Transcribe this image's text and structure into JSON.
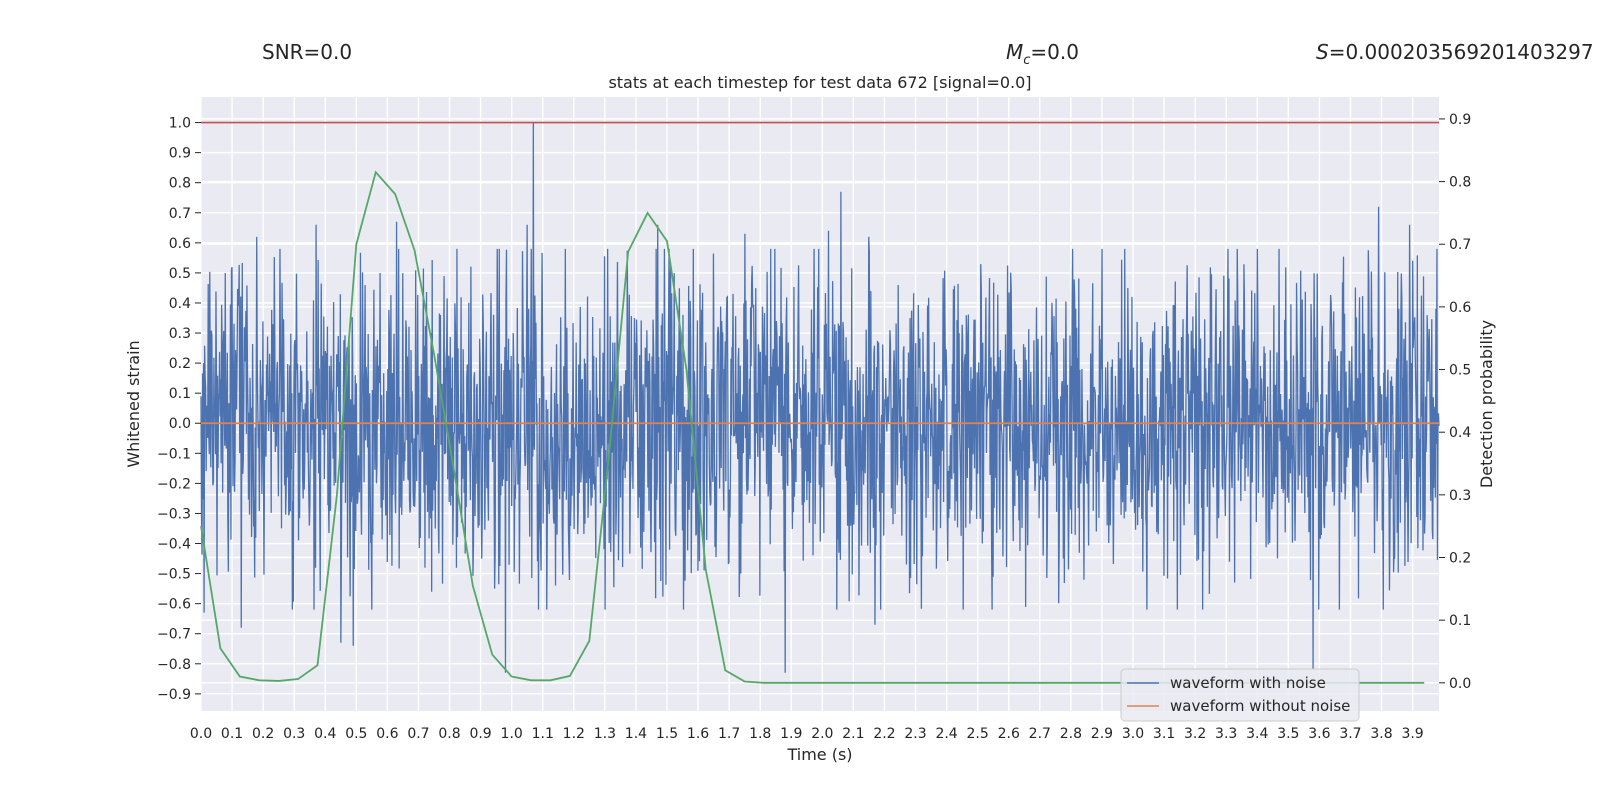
{
  "header": {
    "snr_label": "SNR=0.0",
    "mc_symbol": "M",
    "mc_subscript": "c",
    "mc_value": "=0.0",
    "s_symbol": "S",
    "s_value": "=0.000203569201403297"
  },
  "chart_data": {
    "type": "line",
    "title": "stats at each timestep for test data 672 [signal=0.0]",
    "xlabel": "Time (s)",
    "ylabel": "Whitened strain",
    "y2label": "Detection probability",
    "xlim": [
      0,
      3.985
    ],
    "ylim": [
      -0.957,
      1.085
    ],
    "y2lim": [
      -0.045,
      0.935
    ],
    "x_ticks": [
      "0.0",
      "0.1",
      "0.2",
      "0.3",
      "0.4",
      "0.5",
      "0.6",
      "0.7",
      "0.8",
      "0.9",
      "1.0",
      "1.1",
      "1.2",
      "1.3",
      "1.4",
      "1.5",
      "1.6",
      "1.7",
      "1.8",
      "1.9",
      "2.0",
      "2.1",
      "2.2",
      "2.3",
      "2.4",
      "2.5",
      "2.6",
      "2.7",
      "2.8",
      "2.9",
      "3.0",
      "3.1",
      "3.2",
      "3.3",
      "3.4",
      "3.5",
      "3.6",
      "3.7",
      "3.8",
      "3.9"
    ],
    "y_ticks": [
      "1.0",
      "0.9",
      "0.8",
      "0.7",
      "0.6",
      "0.5",
      "0.4",
      "0.3",
      "0.2",
      "0.1",
      "0.0",
      "−0.1",
      "−0.2",
      "−0.3",
      "−0.4",
      "−0.5",
      "−0.6",
      "−0.7",
      "−0.8",
      "−0.9"
    ],
    "y2_ticks": [
      "0.9",
      "0.8",
      "0.7",
      "0.6",
      "0.5",
      "0.4",
      "0.3",
      "0.2",
      "0.1",
      "0.0"
    ],
    "legend": {
      "placement": "lower-right",
      "entries": [
        "waveform with noise",
        "waveform without noise"
      ]
    },
    "series": [
      {
        "name": "waveform with noise",
        "color": "#4c72b0",
        "axis": "left",
        "description": "whitened noisy strain, approximately uniform noise within [-0.6, 0.55] with sparse spikes",
        "notable_peaks": [
          {
            "x": 1.07,
            "y": 1.0
          },
          {
            "x": 2.06,
            "y": 0.77
          },
          {
            "x": 3.79,
            "y": 0.72
          },
          {
            "x": 0.01,
            "y": 0.61
          },
          {
            "x": 0.18,
            "y": 0.62
          },
          {
            "x": 0.37,
            "y": 0.66
          },
          {
            "x": 0.63,
            "y": 0.67
          },
          {
            "x": 1.05,
            "y": 0.66
          },
          {
            "x": 1.47,
            "y": 0.66
          },
          {
            "x": 1.75,
            "y": 0.63
          },
          {
            "x": 2.02,
            "y": 0.64
          },
          {
            "x": 2.15,
            "y": 0.62
          },
          {
            "x": 3.89,
            "y": 0.66
          }
        ],
        "notable_troughs": [
          {
            "x": 1.88,
            "y": -0.83
          },
          {
            "x": 3.58,
            "y": -0.82
          },
          {
            "x": 0.98,
            "y": -0.83
          },
          {
            "x": 0.49,
            "y": -0.74
          },
          {
            "x": 0.45,
            "y": -0.73
          },
          {
            "x": 0.13,
            "y": -0.68
          },
          {
            "x": 2.17,
            "y": -0.67
          },
          {
            "x": 0.01,
            "y": -0.63
          }
        ]
      },
      {
        "name": "waveform without noise",
        "color": "#dd8452",
        "axis": "left",
        "x": [
          0.0,
          3.985
        ],
        "y": [
          0.0,
          0.0
        ]
      },
      {
        "name": "threshold",
        "color": "#c44e52",
        "axis": "left",
        "x": [
          0.0,
          3.985
        ],
        "y": [
          1.0,
          1.0
        ]
      },
      {
        "name": "detection probability",
        "color": "#55a868",
        "axis": "right",
        "x": [
          0.0,
          0.0625,
          0.125,
          0.1875,
          0.25,
          0.3125,
          0.375,
          0.4375,
          0.5,
          0.5625,
          0.625,
          0.6875,
          0.75,
          0.8125,
          0.875,
          0.9375,
          1.0,
          1.0625,
          1.125,
          1.1875,
          1.25,
          1.3125,
          1.375,
          1.4375,
          1.5,
          1.5625,
          1.625,
          1.6875,
          1.75,
          1.8125,
          1.875,
          1.9375,
          2.0,
          2.5,
          3.0,
          3.5,
          3.9375
        ],
        "y": [
          0.25,
          0.055,
          0.01,
          0.004,
          0.003,
          0.006,
          0.028,
          0.3,
          0.7,
          0.815,
          0.78,
          0.69,
          0.525,
          0.345,
          0.155,
          0.045,
          0.01,
          0.004,
          0.004,
          0.011,
          0.067,
          0.36,
          0.688,
          0.75,
          0.705,
          0.5,
          0.18,
          0.02,
          0.002,
          0.0,
          0.0,
          0.0,
          0.0,
          0.0,
          0.0,
          0.0,
          0.0
        ]
      }
    ]
  }
}
